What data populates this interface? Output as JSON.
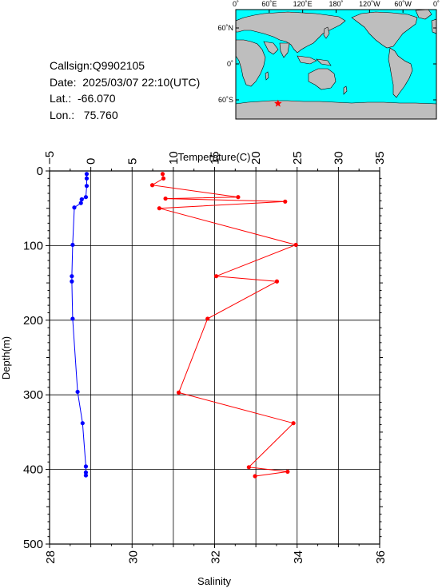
{
  "info": {
    "callsign": "Callsign:Q9902105",
    "date": "Date:  2025/03/07 22:10(UTC)",
    "lat": "Lat.:  -66.070",
    "lon": "Lon.:   75.760"
  },
  "map": {
    "top_ticks": [
      "0˚",
      "60˚E",
      "120˚E",
      "180˚",
      "120˚W",
      "60˚W",
      "0˚"
    ],
    "lat_ticks": [
      "60˚N",
      "0˚",
      "60˚S"
    ],
    "float_position": {
      "lon": 75.76,
      "lat": -66.07
    },
    "colors": {
      "ocean": "#00ffff",
      "land": "#bebebe",
      "marker": "#ff0000"
    }
  },
  "chart_data": {
    "type": "line",
    "x_top_label": "Temperature(C)",
    "x_top_ticks": [
      "−5",
      "0",
      "5",
      "10",
      "15",
      "20",
      "25",
      "30",
      "35"
    ],
    "x_top_range": [
      -5,
      35
    ],
    "x_bottom_label": "Salinity",
    "x_bottom_ticks": [
      "28",
      "30",
      "32",
      "34",
      "36"
    ],
    "x_bottom_range": [
      28,
      36
    ],
    "ylabel": "Depth(m)",
    "y_ticks": [
      "0",
      "100",
      "200",
      "300",
      "400",
      "500"
    ],
    "y_range": [
      0,
      500
    ],
    "y_inverted": true,
    "grid": true,
    "series": [
      {
        "axis": "temperature",
        "color": "#0000ff",
        "points": [
          {
            "x": -0.5,
            "y": 4
          },
          {
            "x": -0.5,
            "y": 10
          },
          {
            "x": -0.5,
            "y": 20
          },
          {
            "x": -0.6,
            "y": 35
          },
          {
            "x": -1.1,
            "y": 38
          },
          {
            "x": -1.2,
            "y": 43
          },
          {
            "x": -2.0,
            "y": 49
          },
          {
            "x": -2.2,
            "y": 99
          },
          {
            "x": -2.3,
            "y": 141
          },
          {
            "x": -2.3,
            "y": 148
          },
          {
            "x": -2.2,
            "y": 198
          },
          {
            "x": -1.6,
            "y": 296
          },
          {
            "x": -1.0,
            "y": 338
          },
          {
            "x": -0.6,
            "y": 396
          },
          {
            "x": -0.6,
            "y": 404
          },
          {
            "x": -0.6,
            "y": 408
          }
        ]
      },
      {
        "axis": "salinity",
        "color": "#ff0000",
        "points": [
          {
            "x": 30.74,
            "y": 4
          },
          {
            "x": 30.76,
            "y": 10
          },
          {
            "x": 30.49,
            "y": 19
          },
          {
            "x": 32.57,
            "y": 35
          },
          {
            "x": 30.81,
            "y": 37
          },
          {
            "x": 33.71,
            "y": 41
          },
          {
            "x": 30.66,
            "y": 50
          },
          {
            "x": 33.97,
            "y": 99
          },
          {
            "x": 32.04,
            "y": 141
          },
          {
            "x": 33.51,
            "y": 148
          },
          {
            "x": 31.83,
            "y": 198
          },
          {
            "x": 31.13,
            "y": 297
          },
          {
            "x": 33.91,
            "y": 338
          },
          {
            "x": 32.83,
            "y": 397
          },
          {
            "x": 33.77,
            "y": 403
          },
          {
            "x": 32.98,
            "y": 409
          }
        ]
      }
    ]
  }
}
